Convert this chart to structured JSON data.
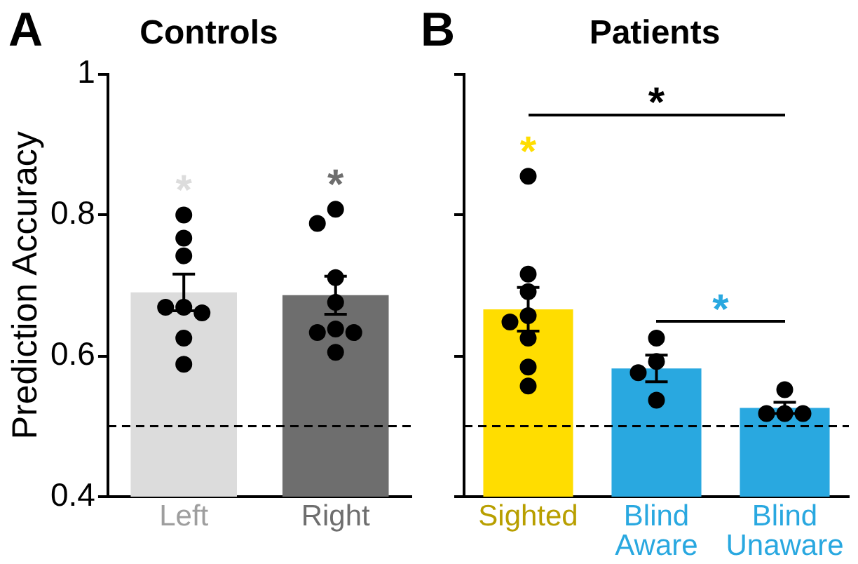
{
  "chart_data": [
    {
      "type": "bar",
      "title": "Controls",
      "ylabel": "Prediction Accuracy",
      "categories": [
        "Left",
        "Right"
      ],
      "values": [
        0.69,
        0.686
      ],
      "colors": [
        "#dcdcdc",
        "#6e6e6e"
      ],
      "errors": [
        0.026,
        0.027
      ],
      "series": [
        {
          "type": "scatter",
          "color": "#000000",
          "x": [
            "Left",
            "Left",
            "Left",
            "Left",
            "Left",
            "Left",
            "Left",
            "Left",
            "Right",
            "Right",
            "Right",
            "Right",
            "Right",
            "Right",
            "Right",
            "Right"
          ],
          "values": [
            0.8,
            0.767,
            0.742,
            0.669,
            0.669,
            0.661,
            0.625,
            0.588,
            0.808,
            0.788,
            0.711,
            0.676,
            0.638,
            0.633,
            0.633,
            0.605
          ]
        }
      ],
      "ylim": [
        0.4,
        1
      ],
      "yticks": [
        0.4,
        0.6,
        0.8,
        1
      ],
      "grid": false,
      "legend": false,
      "ref_lines": [
        {
          "axis": "y",
          "value": 0.5,
          "color": "#000000",
          "line_style": "dashed"
        }
      ],
      "annotations": [
        "A",
        "*",
        "*"
      ]
    },
    {
      "type": "bar",
      "title": "Patients",
      "categories": [
        "Sighted",
        "Blind Aware",
        "Blind Unaware"
      ],
      "values": [
        0.666,
        0.582,
        0.526
      ],
      "colors": [
        "#ffdd00",
        "#29a8e0",
        "#29a8e0"
      ],
      "errors": [
        0.031,
        0.019,
        0.008
      ],
      "series": [
        {
          "type": "scatter",
          "color": "#000000",
          "x": [
            "Sighted",
            "Sighted",
            "Sighted",
            "Sighted",
            "Sighted",
            "Sighted",
            "Sighted",
            "Sighted",
            "Blind Aware",
            "Blind Aware",
            "Blind Aware",
            "Blind Aware",
            "Blind Unaware",
            "Blind Unaware",
            "Blind Unaware",
            "Blind Unaware"
          ],
          "values": [
            0.855,
            0.716,
            0.691,
            0.657,
            0.648,
            0.625,
            0.584,
            0.557,
            0.625,
            0.592,
            0.576,
            0.537,
            0.552,
            0.518,
            0.518,
            0.518
          ]
        }
      ],
      "ylim": [
        0.4,
        1
      ],
      "yticks": [
        0.4,
        0.6,
        0.8,
        1
      ],
      "tick_labels": "x",
      "grid": false,
      "legend": false,
      "ref_lines": [
        {
          "axis": "y",
          "value": 0.5,
          "color": "#000000",
          "line_style": "dashed"
        }
      ],
      "annotations": [
        "B",
        "*",
        "*",
        "*"
      ]
    }
  ]
}
